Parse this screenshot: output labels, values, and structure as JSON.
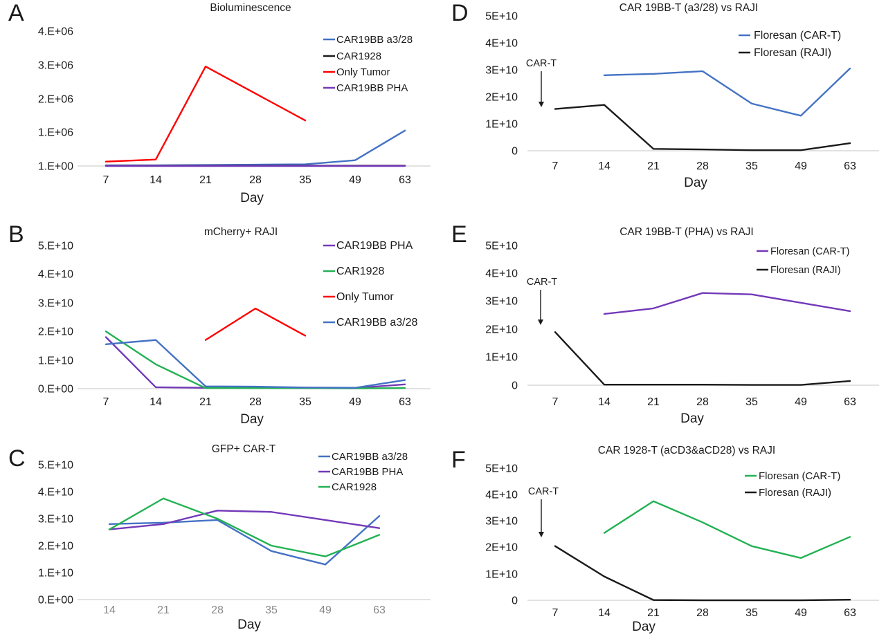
{
  "figure": {
    "background": "#ffffff",
    "axis_line_color": "#d9d9d9",
    "text_color": "#1a1a1a",
    "muted_tick_color": "#8a8a8a"
  },
  "chart_data": [
    {
      "panel": "A",
      "type": "line",
      "title": "Bioluminescence",
      "xlabel": "Day",
      "x": [
        7,
        14,
        21,
        28,
        35,
        49,
        63
      ],
      "y_axis": {
        "unit": "1e6",
        "grid": false,
        "ticks": [
          {
            "label": "4.E+06",
            "value": 4
          },
          {
            "label": "3.E+06",
            "value": 3
          },
          {
            "label": "2.E+06",
            "value": 2
          },
          {
            "label": "1.E+06",
            "value": 1
          },
          {
            "label": "1.E+00",
            "value": 0
          }
        ]
      },
      "legend_position": "top-right",
      "series": [
        {
          "name": "CAR19BB a3/28",
          "color": "#4472C4",
          "values": [
            0.02,
            0.02,
            0.03,
            0.04,
            0.05,
            0.17,
            1.05
          ]
        },
        {
          "name": "CAR1928",
          "color": "#1A1A1A",
          "values": [
            0.01,
            0.01,
            0.01,
            0.01,
            0.01,
            0.01,
            0.01
          ]
        },
        {
          "name": "Only Tumor",
          "color": "#FF0000",
          "values": [
            0.13,
            0.19,
            2.95,
            2.15,
            1.35,
            null,
            null
          ]
        },
        {
          "name": "CAR19BB PHA",
          "color": "#7339B8",
          "values": [
            0,
            0,
            0,
            0,
            0,
            0,
            0
          ]
        }
      ]
    },
    {
      "panel": "B",
      "type": "line",
      "title": "mCherry+ RAJI",
      "xlabel": "Day",
      "x": [
        7,
        14,
        21,
        28,
        35,
        49,
        63
      ],
      "y_axis": {
        "unit": "1e10",
        "grid": false,
        "ticks": [
          {
            "label": "5.E+10",
            "value": 5
          },
          {
            "label": "4.E+10",
            "value": 4
          },
          {
            "label": "3.E+10",
            "value": 3
          },
          {
            "label": "2.E+10",
            "value": 2
          },
          {
            "label": "1.E+10",
            "value": 1
          },
          {
            "label": "0.E+00",
            "value": 0
          }
        ]
      },
      "legend_position": "top-right",
      "series": [
        {
          "name": "CAR19BB PHA",
          "color": "#7339B8",
          "values": [
            1.8,
            0.05,
            0.03,
            0.03,
            0.02,
            0.02,
            0.15
          ]
        },
        {
          "name": "CAR1928",
          "color": "#22B153",
          "values": [
            2.0,
            0.85,
            0.02,
            0.02,
            0.02,
            0.01,
            0.02
          ]
        },
        {
          "name": "Only Tumor",
          "color": "#FF0000",
          "values": [
            null,
            null,
            1.7,
            2.8,
            1.85,
            null,
            null
          ]
        },
        {
          "name": "CAR19BB a3/28",
          "color": "#4472C4",
          "values": [
            1.55,
            1.7,
            0.08,
            0.07,
            0.04,
            0.03,
            0.3
          ]
        }
      ]
    },
    {
      "panel": "C",
      "type": "line",
      "title": "GFP+ CAR-T",
      "xlabel": "Day",
      "x": [
        14,
        21,
        28,
        35,
        49,
        63
      ],
      "y_axis": {
        "unit": "1e10",
        "grid": false,
        "ticks": [
          {
            "label": "5.E+10",
            "value": 5
          },
          {
            "label": "4.E+10",
            "value": 4
          },
          {
            "label": "3.E+10",
            "value": 3
          },
          {
            "label": "2.E+10",
            "value": 2
          },
          {
            "label": "1.E+10",
            "value": 1
          },
          {
            "label": "0.E+00",
            "value": 0
          }
        ]
      },
      "legend_position": "top-right",
      "series": [
        {
          "name": "CAR19BB a3/28",
          "color": "#4472C4",
          "values": [
            2.8,
            2.85,
            2.95,
            1.8,
            1.3,
            3.1
          ]
        },
        {
          "name": "CAR19BB PHA",
          "color": "#7339B8",
          "values": [
            2.6,
            2.8,
            3.3,
            3.25,
            2.95,
            2.65
          ]
        },
        {
          "name": "CAR1928",
          "color": "#22B153",
          "values": [
            2.6,
            3.75,
            3.0,
            2.0,
            1.6,
            2.4
          ]
        }
      ]
    },
    {
      "panel": "D",
      "type": "line",
      "title": "CAR 19BB-T (a3/28) vs RAJI",
      "xlabel": "Day",
      "x": [
        7,
        14,
        21,
        28,
        35,
        49,
        63
      ],
      "y_axis": {
        "unit": "1e10",
        "grid": false,
        "ticks": [
          {
            "label": "5E+10",
            "value": 5
          },
          {
            "label": "4E+10",
            "value": 4
          },
          {
            "label": "3E+10",
            "value": 3
          },
          {
            "label": "2E+10",
            "value": 2
          },
          {
            "label": "1E+10",
            "value": 1
          },
          {
            "label": "0",
            "value": 0
          }
        ]
      },
      "legend_position": "top-right",
      "annotation": {
        "text": "CAR-T",
        "at_x": 7
      },
      "series": [
        {
          "name": "Floresan (CAR-T)",
          "color": "#4472C4",
          "values": [
            null,
            2.8,
            2.85,
            2.95,
            1.75,
            1.3,
            3.05
          ]
        },
        {
          "name": "Floresan (RAJI)",
          "color": "#1A1A1A",
          "values": [
            1.55,
            1.7,
            0.07,
            0.05,
            0.02,
            0.02,
            0.28
          ]
        }
      ]
    },
    {
      "panel": "E",
      "type": "line",
      "title": "CAR 19BB-T (PHA) vs RAJI",
      "xlabel": "Day",
      "x": [
        7,
        14,
        21,
        28,
        35,
        49,
        63
      ],
      "y_axis": {
        "unit": "1e10",
        "grid": false,
        "ticks": [
          {
            "label": "5E+10",
            "value": 5
          },
          {
            "label": "4E+10",
            "value": 4
          },
          {
            "label": "3E+10",
            "value": 3
          },
          {
            "label": "2E+10",
            "value": 2
          },
          {
            "label": "1E+10",
            "value": 1
          },
          {
            "label": "0",
            "value": 0
          }
        ]
      },
      "legend_position": "top-right",
      "annotation": {
        "text": "CAR-T",
        "at_x": 7
      },
      "series": [
        {
          "name": "Floresan (CAR-T)",
          "color": "#7339B8",
          "values": [
            null,
            2.55,
            2.75,
            3.3,
            3.25,
            2.95,
            2.65
          ]
        },
        {
          "name": "Floresan (RAJI)",
          "color": "#1A1A1A",
          "values": [
            1.9,
            0.02,
            0.02,
            0.02,
            0.01,
            0.01,
            0.15
          ]
        }
      ]
    },
    {
      "panel": "F",
      "type": "line",
      "title": "CAR 1928-T (aCD3&aCD28) vs RAJI",
      "xlabel": "Day",
      "x": [
        7,
        14,
        21,
        28,
        35,
        49,
        63
      ],
      "y_axis": {
        "unit": "1e10",
        "grid": false,
        "ticks": [
          {
            "label": "5E+10",
            "value": 5
          },
          {
            "label": "4E+10",
            "value": 4
          },
          {
            "label": "3E+10",
            "value": 3
          },
          {
            "label": "2E+10",
            "value": 2
          },
          {
            "label": "1E+10",
            "value": 1
          },
          {
            "label": "0",
            "value": 0
          }
        ]
      },
      "legend_position": "top-right",
      "annotation": {
        "text": "CAR-T",
        "at_x": 7
      },
      "series": [
        {
          "name": "Floresan (CAR-T)",
          "color": "#22B153",
          "values": [
            null,
            2.55,
            3.75,
            2.95,
            2.05,
            1.6,
            2.4
          ]
        },
        {
          "name": "Floresan (RAJI)",
          "color": "#1A1A1A",
          "values": [
            2.05,
            0.9,
            0.01,
            0.0,
            0.0,
            0.0,
            0.02
          ]
        }
      ]
    }
  ]
}
